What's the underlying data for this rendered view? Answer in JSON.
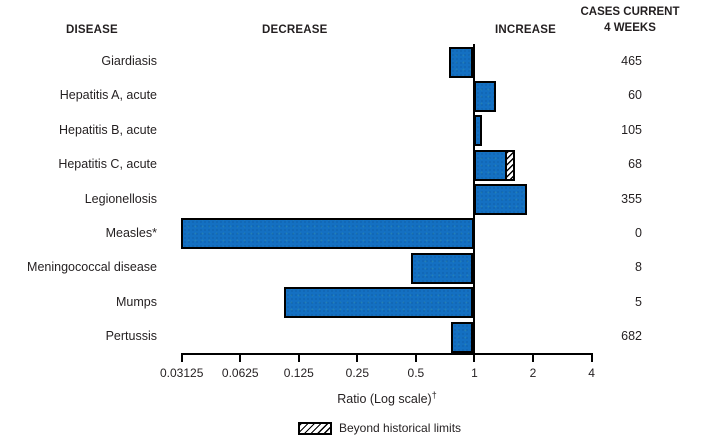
{
  "header": {
    "disease": "DISEASE",
    "decrease": "DECREASE",
    "increase": "INCREASE",
    "cases_line1": "CASES CURRENT",
    "cases_line2": "4 WEEKS"
  },
  "chart_data": {
    "type": "bar",
    "orientation": "horizontal",
    "scale": "log2",
    "baseline": 1,
    "axis": {
      "label": "Ratio (Log scale)",
      "label_sup": "†",
      "ticks": [
        0.03125,
        0.0625,
        0.125,
        0.25,
        0.5,
        1,
        2,
        4
      ],
      "tick_labels": [
        "0.03125",
        "0.0625",
        "0.125",
        "0.25",
        "0.5",
        "1",
        "2",
        "4"
      ],
      "min": 0.03125,
      "max": 4
    },
    "rows": [
      {
        "disease": "Giardiasis",
        "ratio": 0.75,
        "solid_to": 0.75,
        "beyond_historical_limits": false,
        "cases": "465"
      },
      {
        "disease": "Hepatitis A, acute",
        "ratio": 1.29,
        "solid_to": 1.29,
        "beyond_historical_limits": false,
        "cases": "60"
      },
      {
        "disease": "Hepatitis B, acute",
        "ratio": 1.09,
        "solid_to": 1.09,
        "beyond_historical_limits": false,
        "cases": "105"
      },
      {
        "disease": "Hepatitis C, acute",
        "ratio": 1.62,
        "solid_to": 1.47,
        "beyond_historical_limits": true,
        "cases": "68"
      },
      {
        "disease": "Legionellosis",
        "ratio": 1.86,
        "solid_to": 1.86,
        "beyond_historical_limits": false,
        "cases": "355"
      },
      {
        "disease": "Measles*",
        "ratio": 0.03125,
        "solid_to": 0.03125,
        "beyond_historical_limits": false,
        "cases": "0"
      },
      {
        "disease": "Meningococcal disease",
        "ratio": 0.48,
        "solid_to": 0.48,
        "beyond_historical_limits": false,
        "cases": "8"
      },
      {
        "disease": "Mumps",
        "ratio": 0.106,
        "solid_to": 0.106,
        "beyond_historical_limits": false,
        "cases": "5"
      },
      {
        "disease": "Pertussis",
        "ratio": 0.77,
        "solid_to": 0.77,
        "beyond_historical_limits": false,
        "cases": "682"
      }
    ]
  },
  "legend": {
    "label": "Beyond historical limits"
  },
  "colors": {
    "bar_fill": "#1470c2",
    "bar_border": "#000000",
    "text": "#231f20"
  }
}
